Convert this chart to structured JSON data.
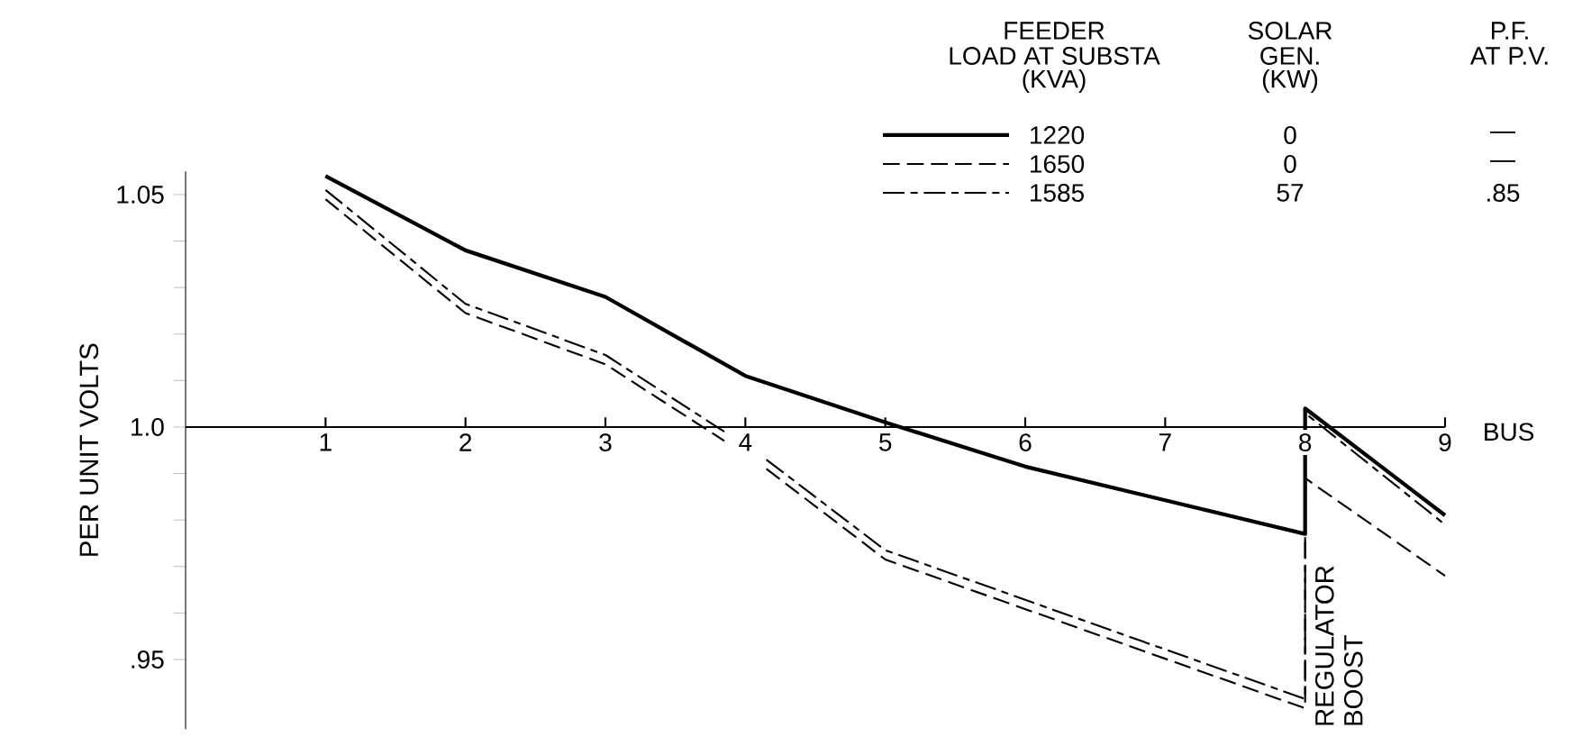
{
  "chart_data": {
    "type": "line",
    "xlabel": "BUS",
    "ylabel": "PER UNIT VOLTS",
    "xlim": [
      0,
      9
    ],
    "xticks": [
      1,
      2,
      3,
      4,
      5,
      6,
      7,
      8,
      9
    ],
    "ylim": [
      0.935,
      1.055
    ],
    "yticks": [
      {
        "value": 0.95,
        "label": ".95"
      },
      {
        "value": 0.96,
        "label": null
      },
      {
        "value": 0.97,
        "label": null
      },
      {
        "value": 0.98,
        "label": null
      },
      {
        "value": 0.99,
        "label": null
      },
      {
        "value": 1.0,
        "label": "1.0"
      },
      {
        "value": 1.01,
        "label": null
      },
      {
        "value": 1.02,
        "label": null
      },
      {
        "value": 1.03,
        "label": null
      },
      {
        "value": 1.04,
        "label": null
      },
      {
        "value": 1.05,
        "label": "1.05"
      }
    ],
    "legend": "top right",
    "marker": "none",
    "series": [
      {
        "name": "1220",
        "color": "#000000",
        "line_style": "solid",
        "x": [
          1,
          2,
          3,
          4,
          5,
          6,
          8,
          8,
          9
        ],
        "values": [
          1.054,
          1.038,
          1.028,
          1.011,
          1.001,
          0.9915,
          0.977,
          1.004,
          0.981
        ]
      },
      {
        "name": "1650",
        "color": "#000000",
        "line_style": "dashed",
        "x": [
          1,
          2,
          3,
          3.85,
          4,
          4.15,
          5,
          8,
          8,
          9
        ],
        "values": [
          1.049,
          1.0245,
          1.0135,
          0.997,
          null,
          0.991,
          0.9715,
          0.9395,
          0.989,
          0.968
        ]
      },
      {
        "name": "1585",
        "color": "#000000",
        "line_style": "dashdot",
        "x": [
          1,
          2,
          3,
          3.85,
          4,
          4.15,
          5,
          8,
          8,
          9
        ],
        "values": [
          1.051,
          1.0265,
          1.0155,
          0.999,
          null,
          0.993,
          0.9735,
          0.9415,
          1.003,
          0.979
        ]
      }
    ],
    "annotations": [
      "FEEDER",
      "LOAD AT SUBSTA",
      "(KVA)",
      "SOLAR",
      "GEN.",
      "(KW)",
      "P.F.",
      "AT P.V.",
      "0",
      "—",
      "0",
      "—",
      "57",
      ".85",
      {
        "text": "REGULATOR BOOST",
        "x": 8,
        "y": 0.94
      }
    ]
  }
}
